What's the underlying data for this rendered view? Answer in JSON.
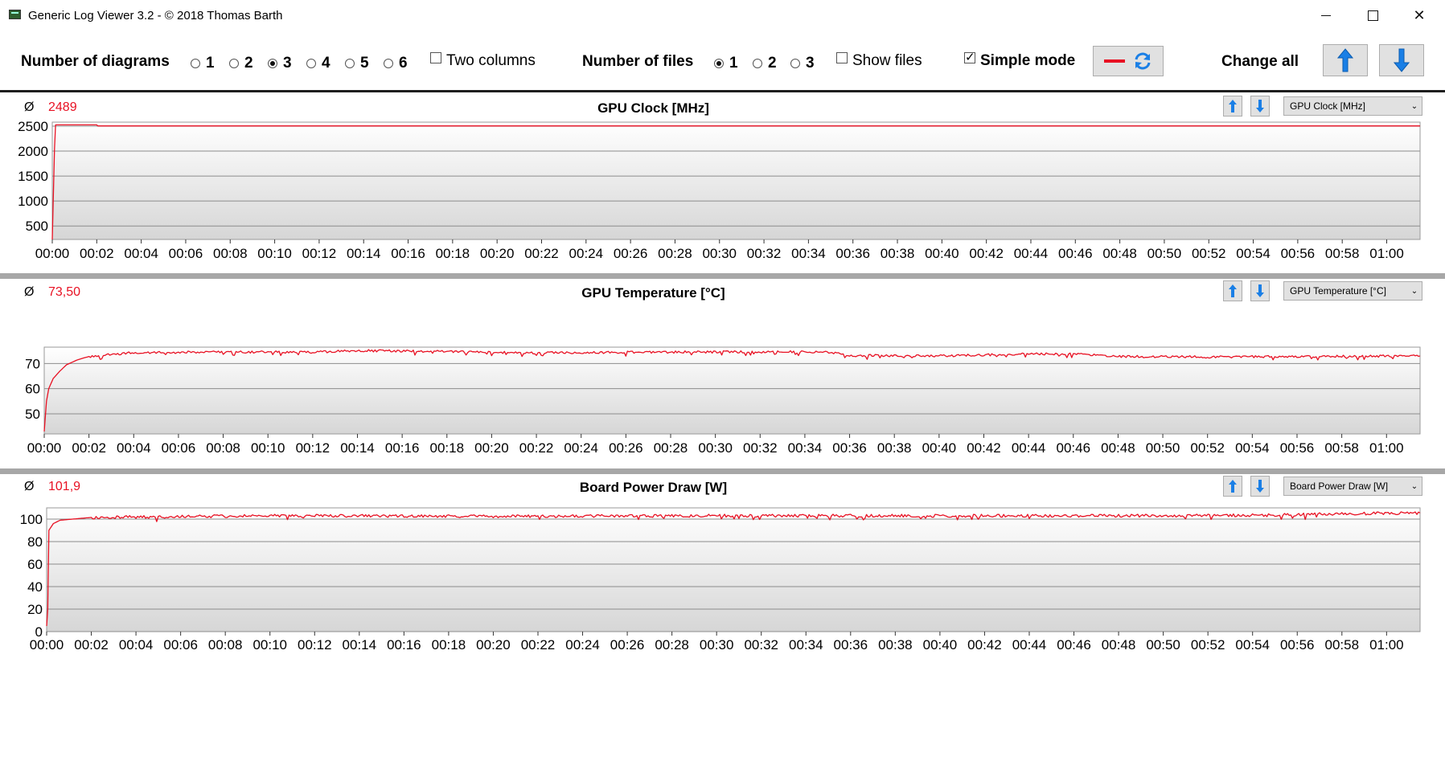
{
  "window": {
    "title": "Generic Log Viewer 3.2 - © 2018 Thomas Barth",
    "icon": "app-icon"
  },
  "toolbar": {
    "diagrams_label": "Number of diagrams",
    "diagram_options": [
      {
        "label": "1",
        "selected": false
      },
      {
        "label": "2",
        "selected": false
      },
      {
        "label": "3",
        "selected": true
      },
      {
        "label": "4",
        "selected": false
      },
      {
        "label": "5",
        "selected": false
      },
      {
        "label": "6",
        "selected": false
      }
    ],
    "two_columns_label": "Two columns",
    "files_label": "Number of files",
    "file_options": [
      {
        "label": "1",
        "selected": true
      },
      {
        "label": "2",
        "selected": false
      },
      {
        "label": "3",
        "selected": false
      }
    ],
    "show_files_label": "Show files",
    "simple_mode_label": "Simple mode",
    "simple_mode_checked": true,
    "change_all_label": "Change all",
    "series_color": "#e81123",
    "arrow_color": "#1a7fe6"
  },
  "panels": [
    {
      "avg_symbol": "Ø",
      "avg_value": "2489",
      "title": "GPU Clock [MHz]",
      "select_value": "GPU Clock [MHz]",
      "chart_data": {
        "type": "line",
        "title": "GPU Clock [MHz]",
        "x_ticks": [
          "00:00",
          "00:02",
          "00:04",
          "00:06",
          "00:08",
          "00:10",
          "00:12",
          "00:14",
          "00:16",
          "00:18",
          "00:20",
          "00:22",
          "00:24",
          "00:26",
          "00:28",
          "00:30",
          "00:32",
          "00:34",
          "00:36",
          "00:38",
          "00:40",
          "00:42",
          "00:44",
          "00:46",
          "00:48",
          "00:50",
          "00:52",
          "00:54",
          "00:56",
          "00:58",
          "01:00"
        ],
        "x_range_minutes": [
          0,
          61.5
        ],
        "y_ticks": [
          500,
          1000,
          1500,
          2000,
          2500
        ],
        "y_range": [
          230,
          2580
        ],
        "series": [
          {
            "color": "#e81123",
            "points": [
              [
                0,
                230
              ],
              [
                0.1,
                2050
              ],
              [
                0.15,
                2525
              ],
              [
                2,
                2525
              ],
              [
                2.05,
                2505
              ],
              [
                61.5,
                2505
              ]
            ],
            "noise": 0
          }
        ]
      }
    },
    {
      "avg_symbol": "Ø",
      "avg_value": "73,50",
      "title": "GPU Temperature [°C]",
      "select_value": "GPU Temperature [°C]",
      "chart_data": {
        "type": "line",
        "title": "GPU Temperature [°C]",
        "x_ticks": [
          "00:00",
          "00:02",
          "00:04",
          "00:06",
          "00:08",
          "00:10",
          "00:12",
          "00:14",
          "00:16",
          "00:18",
          "00:20",
          "00:22",
          "00:24",
          "00:26",
          "00:28",
          "00:30",
          "00:32",
          "00:34",
          "00:36",
          "00:38",
          "00:40",
          "00:42",
          "00:44",
          "00:46",
          "00:48",
          "00:50",
          "00:52",
          "00:54",
          "00:56",
          "00:58",
          "01:00"
        ],
        "x_range_minutes": [
          0,
          61.5
        ],
        "y_ticks": [
          50,
          60,
          70
        ],
        "y_range": [
          42,
          76.5
        ],
        "series": [
          {
            "color": "#e81123",
            "points": [
              [
                0,
                43
              ],
              [
                0.1,
                55
              ],
              [
                0.2,
                60
              ],
              [
                0.4,
                64
              ],
              [
                0.7,
                67
              ],
              [
                1.0,
                69.5
              ],
              [
                1.5,
                71.5
              ],
              [
                2.0,
                72.8
              ],
              [
                3.0,
                73.6
              ],
              [
                4.0,
                74.3
              ],
              [
                8.0,
                74.6
              ],
              [
                12.0,
                74.5
              ],
              [
                14.0,
                75.1
              ],
              [
                18.0,
                74.8
              ],
              [
                22.0,
                74.2
              ],
              [
                26.0,
                74.5
              ],
              [
                30.0,
                74.6
              ],
              [
                35.0,
                74.6
              ],
              [
                36.0,
                73.2
              ],
              [
                40.0,
                73.0
              ],
              [
                44.0,
                73.8
              ],
              [
                46.0,
                73.8
              ],
              [
                48.0,
                72.8
              ],
              [
                52.0,
                72.6
              ],
              [
                56.0,
                72.8
              ],
              [
                61.5,
                73.0
              ]
            ],
            "noise": 0.45
          }
        ]
      }
    },
    {
      "avg_symbol": "Ø",
      "avg_value": "101,9",
      "title": "Board Power Draw [W]",
      "select_value": "Board Power Draw [W]",
      "chart_data": {
        "type": "line",
        "title": "Board Power Draw [W]",
        "x_ticks": [
          "00:00",
          "00:02",
          "00:04",
          "00:06",
          "00:08",
          "00:10",
          "00:12",
          "00:14",
          "00:16",
          "00:18",
          "00:20",
          "00:22",
          "00:24",
          "00:26",
          "00:28",
          "00:30",
          "00:32",
          "00:34",
          "00:36",
          "00:38",
          "00:40",
          "00:42",
          "00:44",
          "00:46",
          "00:48",
          "00:50",
          "00:52",
          "00:54",
          "00:56",
          "00:58",
          "01:00"
        ],
        "x_range_minutes": [
          0,
          61.5
        ],
        "y_ticks": [
          0,
          20,
          40,
          60,
          80,
          100
        ],
        "y_range": [
          0,
          110
        ],
        "series": [
          {
            "color": "#e81123",
            "points": [
              [
                0,
                5
              ],
              [
                0.05,
                20
              ],
              [
                0.1,
                90
              ],
              [
                0.3,
                96
              ],
              [
                0.6,
                99
              ],
              [
                2,
                101.5
              ],
              [
                10,
                103
              ],
              [
                20,
                102.5
              ],
              [
                30,
                103
              ],
              [
                40,
                103
              ],
              [
                50,
                103
              ],
              [
                55,
                103.5
              ],
              [
                57,
                104.5
              ],
              [
                61.5,
                105.5
              ]
            ],
            "noise": 1.3
          }
        ]
      }
    }
  ]
}
